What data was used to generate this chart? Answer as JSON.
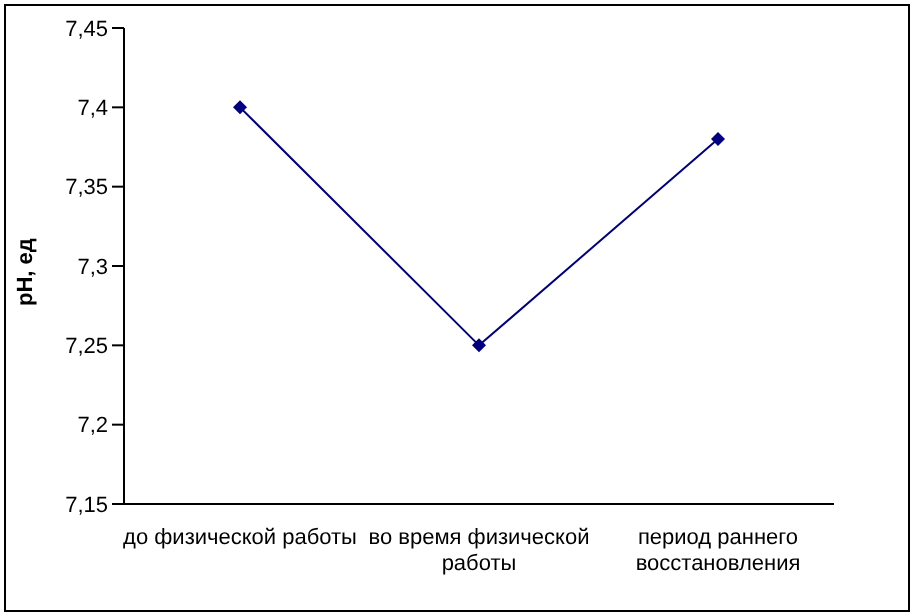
{
  "chart_data": {
    "type": "line",
    "ylabel": "pH, ед",
    "categories": [
      "до физической работы",
      "во время физической работы",
      "период раннего восстановления"
    ],
    "series": [
      {
        "color": "#000080",
        "values": [
          7.4,
          7.25,
          7.38
        ]
      }
    ],
    "ylim": [
      7.15,
      7.45
    ],
    "yticks": [
      {
        "value": 7.15,
        "label": "7,15"
      },
      {
        "value": 7.2,
        "label": "7,2"
      },
      {
        "value": 7.25,
        "label": "7,25"
      },
      {
        "value": 7.3,
        "label": "7,3"
      },
      {
        "value": 7.35,
        "label": "7,35"
      },
      {
        "value": 7.4,
        "label": "7,4"
      },
      {
        "value": 7.45,
        "label": "7,45"
      }
    ],
    "grid": false,
    "legend": false,
    "marker": "diamond",
    "line_style": "solid"
  }
}
